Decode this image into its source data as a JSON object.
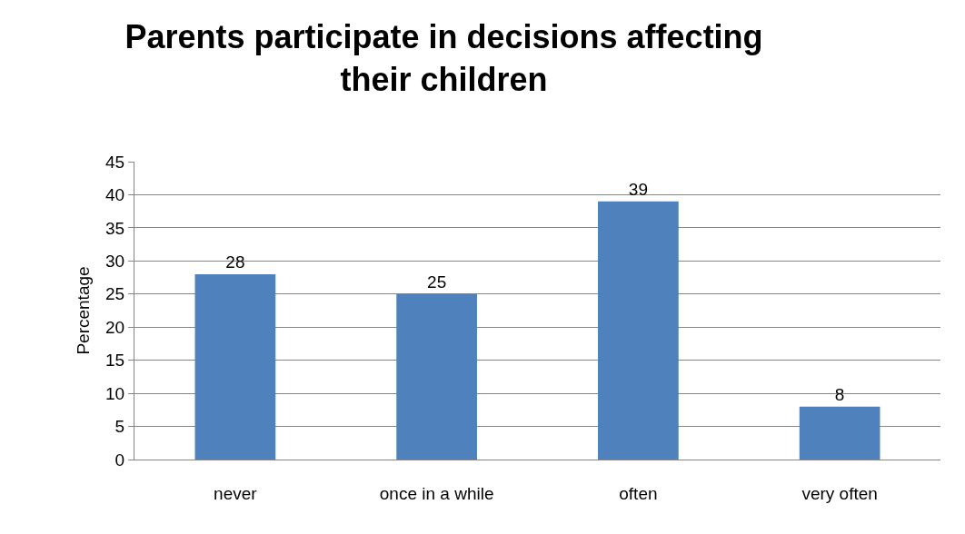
{
  "chart_data": {
    "type": "bar",
    "title": "Parents participate in decisions affecting\ntheir children",
    "ylabel": "Percentage",
    "categories": [
      "never",
      "once in a while",
      "often",
      "very often"
    ],
    "values": [
      28,
      25,
      39,
      8
    ],
    "color": "#4f81bd",
    "ylim": [
      0,
      45
    ],
    "yticks": [
      0,
      5,
      10,
      15,
      20,
      25,
      30,
      35,
      40,
      45
    ],
    "grid": "y",
    "data_labels": true
  }
}
